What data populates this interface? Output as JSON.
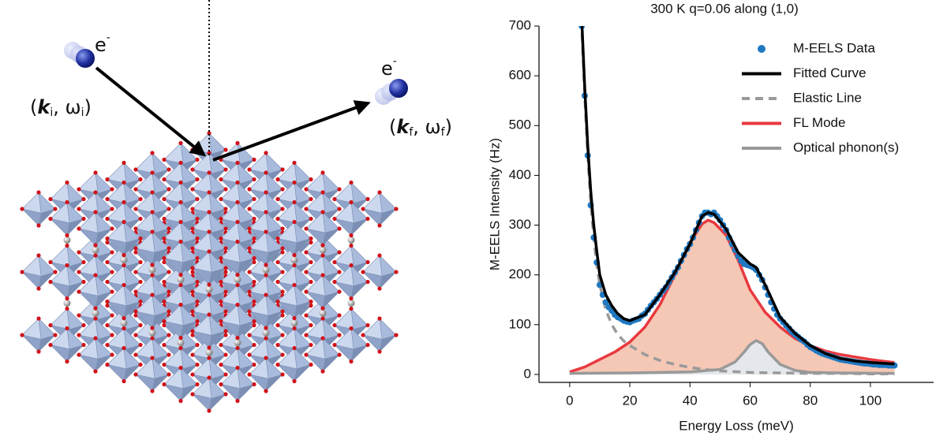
{
  "illustration": {
    "incident": {
      "e": "e",
      "charge": "-",
      "open": "(",
      "k": "k",
      "k_sub": "i",
      "sep": ", ω",
      "w_sub": "i",
      "close": ")"
    },
    "scattered": {
      "e": "e",
      "charge": "-",
      "open": "(",
      "k": "k",
      "k_sub": "f",
      "sep": ", ω",
      "w_sub": "f",
      "close": ")"
    }
  },
  "chart_data": {
    "type": "line",
    "title": "300 K q=0.06 along (1,0)",
    "xlabel": "Energy Loss (meV)",
    "ylabel": "M-EELS Intensity (Hz)",
    "xlim": [
      -10.2,
      121
    ],
    "xticks": [
      0,
      20,
      40,
      60,
      80,
      100
    ],
    "ylim": [
      -16,
      700
    ],
    "yticks": [
      0,
      100,
      200,
      300,
      400,
      500,
      600,
      700
    ],
    "legend": "upper right",
    "series": [
      {
        "name": "M-EELS Data",
        "type": "scatter",
        "color": "#1f78c1",
        "x": [
          4,
          5,
          6,
          7,
          8,
          9,
          10,
          11,
          12,
          13,
          14,
          15,
          16,
          17,
          18,
          19,
          20,
          21,
          22,
          23,
          24,
          25,
          26,
          27,
          28,
          29,
          30,
          31,
          32,
          33,
          34,
          35,
          36,
          37,
          38,
          39,
          40,
          41,
          42,
          43,
          44,
          45,
          46,
          47,
          48,
          49,
          50,
          51,
          52,
          53,
          54,
          55,
          56,
          57,
          58,
          59,
          60,
          61,
          62,
          63,
          64,
          65,
          66,
          67,
          68,
          69,
          70,
          71,
          72,
          73,
          74,
          75,
          76,
          77,
          78,
          79,
          80,
          81,
          82,
          83,
          84,
          85,
          86,
          87,
          88,
          89,
          90,
          91,
          92,
          93,
          94,
          95,
          96,
          97,
          98,
          99,
          100,
          101,
          102,
          103,
          104,
          105,
          106,
          107,
          108
        ],
        "values": [
          700,
          560,
          440,
          340,
          275,
          225,
          180,
          160,
          145,
          135,
          128,
          120,
          115,
          112,
          108,
          106,
          105,
          108,
          110,
          112,
          118,
          122,
          130,
          138,
          145,
          152,
          160,
          168,
          175,
          185,
          195,
          205,
          215,
          228,
          240,
          252,
          262,
          275,
          290,
          305,
          318,
          325,
          325,
          322,
          325,
          318,
          310,
          300,
          290,
          275,
          262,
          250,
          238,
          228,
          222,
          220,
          218,
          215,
          210,
          200,
          190,
          175,
          160,
          145,
          132,
          120,
          112,
          105,
          98,
          92,
          85,
          80,
          75,
          70,
          66,
          60,
          55,
          52,
          48,
          45,
          42,
          40,
          38,
          36,
          34,
          32,
          30,
          29,
          28,
          27,
          26,
          25,
          24,
          23,
          22,
          22,
          21,
          20,
          20,
          19,
          19,
          19,
          18,
          18,
          18
        ]
      },
      {
        "name": "Fitted Curve",
        "type": "line",
        "color": "#000000",
        "x": [
          3.5,
          4,
          5,
          6,
          7,
          8,
          9,
          10,
          12,
          14,
          16,
          18,
          20,
          25,
          30,
          35,
          40,
          44,
          46,
          48,
          52,
          56,
          60,
          62,
          65,
          70,
          75,
          80,
          85,
          90,
          95,
          100,
          105,
          108
        ],
        "values": [
          905,
          715,
          577,
          460,
          368,
          300,
          248,
          200,
          160,
          138,
          122,
          112,
          108,
          120,
          160,
          205,
          262,
          318,
          325,
          322,
          292,
          245,
          222,
          215,
          180,
          115,
          82,
          58,
          42,
          32,
          27,
          24,
          22,
          21
        ]
      },
      {
        "name": "Elastic Line",
        "type": "line",
        "color": "#9a9a9a",
        "dashed": true,
        "x": [
          3.5,
          4,
          5,
          6,
          7,
          8,
          9,
          10,
          12,
          14,
          16,
          18,
          20,
          25,
          30,
          35,
          40,
          45,
          50,
          60,
          70,
          80,
          90,
          100,
          108
        ],
        "values": [
          900,
          700,
          560,
          440,
          345,
          275,
          220,
          180,
          130,
          100,
          80,
          67,
          58,
          40,
          28,
          20,
          14,
          10,
          7,
          4,
          3,
          2,
          2,
          1,
          1
        ]
      },
      {
        "name": "FL Mode",
        "type": "line",
        "color": "#e8393f",
        "fill": "#f5c7b5",
        "x": [
          0,
          5,
          10,
          15,
          20,
          25,
          30,
          35,
          40,
          44,
          46,
          48,
          52,
          56,
          60,
          65,
          70,
          75,
          80,
          85,
          90,
          95,
          100,
          105,
          108
        ],
        "values": [
          5,
          15,
          30,
          45,
          65,
          95,
          140,
          200,
          265,
          302,
          310,
          305,
          280,
          230,
          170,
          125,
          95,
          72,
          58,
          47,
          40,
          35,
          30,
          26,
          24
        ]
      },
      {
        "name": "Optical phonon(s)",
        "type": "line",
        "color": "#999999",
        "fill": "#e4e7ec",
        "x": [
          0,
          20,
          40,
          50,
          55,
          58,
          60,
          62,
          64,
          66,
          70,
          75,
          80,
          90,
          108
        ],
        "values": [
          2,
          3,
          5,
          10,
          25,
          45,
          60,
          68,
          62,
          45,
          20,
          8,
          4,
          3,
          2
        ]
      }
    ]
  }
}
